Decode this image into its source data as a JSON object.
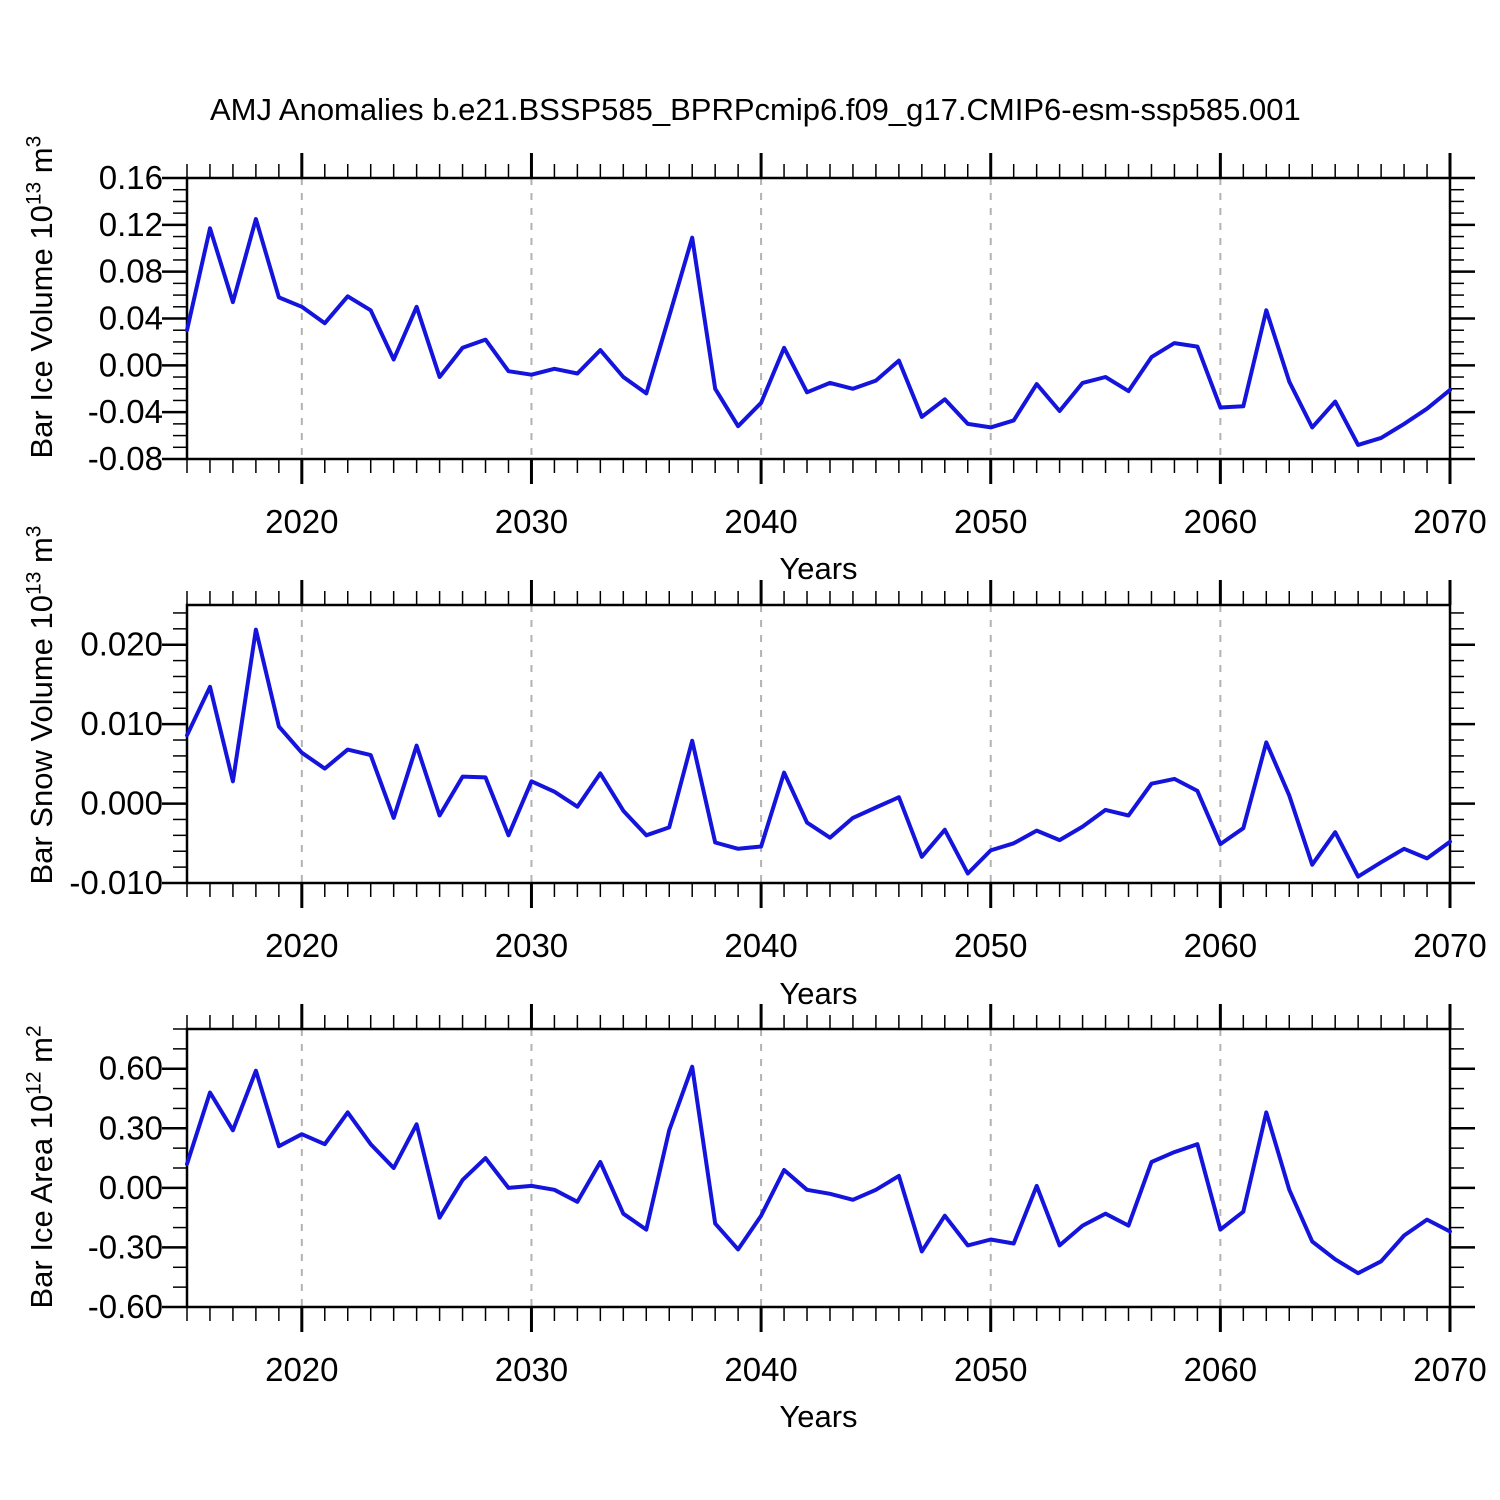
{
  "title": "AMJ Anomalies b.e21.BSSP585_BPRPcmip6.f09_g17.CMIP6-esm-ssp585.001",
  "colors": {
    "line": "#1414dc",
    "grid": "#b2b2b2",
    "axis": "#000000"
  },
  "years": [
    2015,
    2016,
    2017,
    2018,
    2019,
    2020,
    2021,
    2022,
    2023,
    2024,
    2025,
    2026,
    2027,
    2028,
    2029,
    2030,
    2031,
    2032,
    2033,
    2034,
    2035,
    2036,
    2037,
    2038,
    2039,
    2040,
    2041,
    2042,
    2043,
    2044,
    2045,
    2046,
    2047,
    2048,
    2049,
    2050,
    2051,
    2052,
    2053,
    2054,
    2055,
    2056,
    2057,
    2058,
    2059,
    2060,
    2061,
    2062,
    2063,
    2064,
    2065,
    2066,
    2067,
    2068,
    2069,
    2070
  ],
  "chart_data": [
    {
      "type": "line",
      "name": "bar-ice-volume",
      "title": "AMJ Anomalies b.e21.BSSP585_BPRPcmip6.f09_g17.CMIP6-esm-ssp585.001",
      "ylabel_base": "Bar Ice Volume 10",
      "ylabel_exp": "13",
      "ylabel_unit": " m",
      "ylabel_unit_exp": "3",
      "xlabel": "Years",
      "xlim": [
        2015,
        2070
      ],
      "ylim": [
        -0.08,
        0.16
      ],
      "y_minor_step": 0.01,
      "x_major_ticks": [
        2020,
        2030,
        2040,
        2050,
        2060,
        2070
      ],
      "x_tick_labels": [
        "2020",
        "2030",
        "2040",
        "2050",
        "2060",
        "2070"
      ],
      "gridlines_x": [
        2020,
        2030,
        2040,
        2050,
        2060
      ],
      "y_major_ticks": [
        0.16,
        0.12,
        0.08,
        0.04,
        0.0,
        -0.04,
        -0.08
      ],
      "y_tick_labels": [
        "0.16",
        "0.12",
        "0.08",
        "0.04",
        "0.00",
        "-0.04",
        "-0.08"
      ],
      "values": [
        0.03,
        0.117,
        0.054,
        0.125,
        0.058,
        0.05,
        0.036,
        0.059,
        0.047,
        0.005,
        0.05,
        -0.01,
        0.015,
        0.022,
        -0.005,
        -0.008,
        -0.003,
        -0.007,
        0.013,
        -0.01,
        -0.024,
        0.042,
        0.109,
        -0.02,
        -0.052,
        -0.032,
        0.015,
        -0.023,
        -0.015,
        -0.02,
        -0.013,
        0.004,
        -0.044,
        -0.029,
        -0.05,
        -0.053,
        -0.047,
        -0.016,
        -0.039,
        -0.015,
        -0.01,
        -0.022,
        0.007,
        0.019,
        0.016,
        -0.036,
        -0.035,
        0.047,
        -0.014,
        -0.053,
        -0.031,
        -0.068,
        -0.062,
        -0.05,
        -0.037,
        -0.021
      ]
    },
    {
      "type": "line",
      "name": "bar-snow-volume",
      "ylabel_base": "Bar Snow Volume 10",
      "ylabel_exp": "13",
      "ylabel_unit": " m",
      "ylabel_unit_exp": "3",
      "xlabel": "Years",
      "xlim": [
        2015,
        2070
      ],
      "ylim": [
        -0.01,
        0.025
      ],
      "y_minor_step": 0.002,
      "x_major_ticks": [
        2020,
        2030,
        2040,
        2050,
        2060,
        2070
      ],
      "x_tick_labels": [
        "2020",
        "2030",
        "2040",
        "2050",
        "2060",
        "2070"
      ],
      "gridlines_x": [
        2020,
        2030,
        2040,
        2050,
        2060
      ],
      "y_major_ticks": [
        0.02,
        0.01,
        0.0,
        -0.01
      ],
      "y_tick_labels": [
        "0.020",
        "0.010",
        "0.000",
        "-0.010"
      ],
      "values": [
        0.0086,
        0.0147,
        0.0028,
        0.0219,
        0.0097,
        0.0064,
        0.0044,
        0.0068,
        0.0061,
        -0.0018,
        0.0073,
        -0.0015,
        0.0034,
        0.0033,
        -0.004,
        0.0028,
        0.0015,
        -0.0004,
        0.0038,
        -0.0009,
        -0.004,
        -0.003,
        0.0079,
        -0.0049,
        -0.0057,
        -0.0054,
        0.0039,
        -0.0024,
        -0.0043,
        -0.0018,
        -0.0005,
        0.0008,
        -0.0067,
        -0.0033,
        -0.0088,
        -0.0059,
        -0.005,
        -0.0034,
        -0.0046,
        -0.0029,
        -0.0008,
        -0.0015,
        0.0025,
        0.0031,
        0.0016,
        -0.0051,
        -0.0031,
        0.0077,
        0.001,
        -0.0077,
        -0.0036,
        -0.0092,
        -0.0074,
        -0.0057,
        -0.0069,
        -0.0048
      ]
    },
    {
      "type": "line",
      "name": "bar-ice-area",
      "ylabel_base": "Bar Ice Area 10",
      "ylabel_exp": "12",
      "ylabel_unit": " m",
      "ylabel_unit_exp": "2",
      "xlabel": "Years",
      "xlim": [
        2015,
        2070
      ],
      "ylim": [
        -0.6,
        0.8
      ],
      "y_minor_step": 0.1,
      "x_major_ticks": [
        2020,
        2030,
        2040,
        2050,
        2060,
        2070
      ],
      "x_tick_labels": [
        "2020",
        "2030",
        "2040",
        "2050",
        "2060",
        "2070"
      ],
      "gridlines_x": [
        2020,
        2030,
        2040,
        2050,
        2060
      ],
      "y_major_ticks": [
        0.6,
        0.3,
        0.0,
        -0.3,
        -0.6
      ],
      "y_tick_labels": [
        "0.60",
        "0.30",
        "0.00",
        "-0.30",
        "-0.60"
      ],
      "values": [
        0.12,
        0.48,
        0.29,
        0.59,
        0.21,
        0.27,
        0.22,
        0.38,
        0.22,
        0.1,
        0.32,
        -0.15,
        0.04,
        0.15,
        0.0,
        0.01,
        -0.01,
        -0.07,
        0.13,
        -0.13,
        -0.21,
        0.29,
        0.61,
        -0.18,
        -0.31,
        -0.14,
        0.09,
        -0.01,
        -0.03,
        -0.06,
        -0.01,
        0.06,
        -0.32,
        -0.14,
        -0.29,
        -0.26,
        -0.28,
        0.01,
        -0.29,
        -0.19,
        -0.13,
        -0.19,
        0.13,
        0.18,
        0.22,
        -0.21,
        -0.12,
        0.38,
        -0.01,
        -0.27,
        -0.36,
        -0.43,
        -0.37,
        -0.24,
        -0.16,
        -0.22
      ]
    }
  ]
}
